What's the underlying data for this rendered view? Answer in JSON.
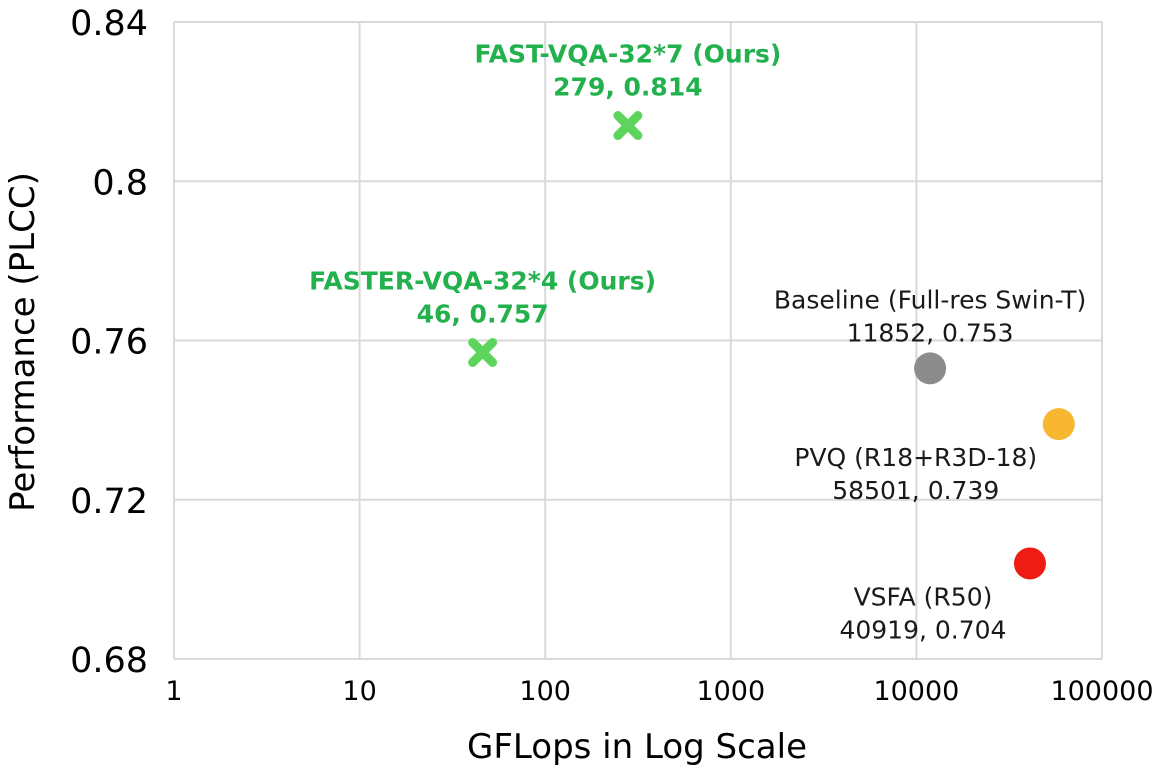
{
  "chart_data": {
    "type": "scatter",
    "xlabel": "GFLops in Log Scale",
    "ylabel": "Performance (PLCC)",
    "x_scale": "log",
    "xlim": [
      1,
      100000
    ],
    "ylim": [
      0.68,
      0.84
    ],
    "x_ticks": [
      "1",
      "10",
      "100",
      "1000",
      "10000",
      "100000"
    ],
    "y_ticks": [
      "0.68",
      "0.72",
      "0.76",
      "0.8",
      "0.84"
    ],
    "grid": true,
    "points": [
      {
        "label": "FAST-VQA-32*7 (Ours)",
        "value_text": "279, 0.814",
        "x": 279,
        "y": 0.814,
        "marker": "x",
        "color": "#5dd55d",
        "label_color": "#22b14c"
      },
      {
        "label": "FASTER-VQA-32*4 (Ours)",
        "value_text": "46, 0.757",
        "x": 46,
        "y": 0.757,
        "marker": "x",
        "color": "#5dd55d",
        "label_color": "#22b14c"
      },
      {
        "label": "Baseline (Full-res Swin-T)",
        "value_text": "11852, 0.753",
        "x": 11852,
        "y": 0.753,
        "marker": "circle",
        "color": "#8c8c8c",
        "label_color": "#1a1a1a"
      },
      {
        "label": "PVQ (R18+R3D-18)",
        "value_text": "58501, 0.739",
        "x": 58501,
        "y": 0.739,
        "marker": "circle",
        "color": "#f7b731",
        "label_color": "#1a1a1a"
      },
      {
        "label": "VSFA (R50)",
        "value_text": "40919, 0.704",
        "x": 40919,
        "y": 0.704,
        "marker": "circle",
        "color": "#ee1c12",
        "label_color": "#1a1a1a"
      }
    ]
  }
}
